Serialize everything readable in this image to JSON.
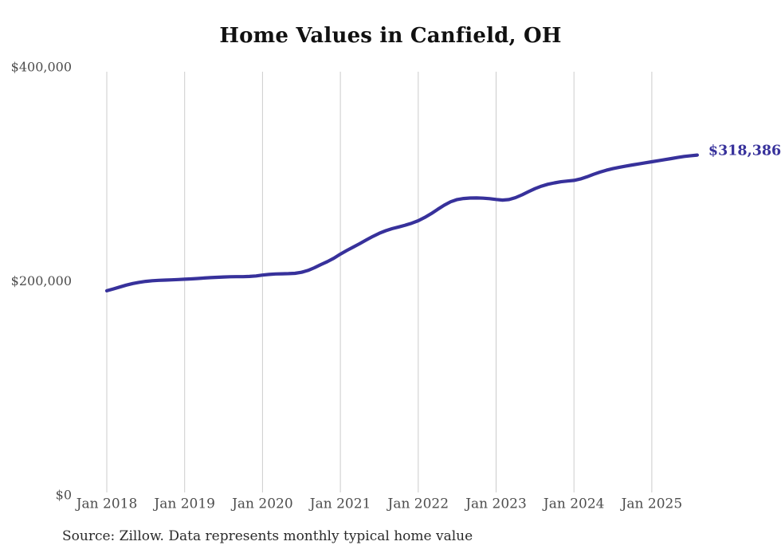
{
  "page": {
    "title": "Home Values in Canfield, OH",
    "source": "Source: Zillow. Data represents monthly typical home value"
  },
  "chart_data": {
    "type": "line",
    "title": "Home Values in Canfield, OH",
    "source_note": "Source: Zillow. Data represents monthly typical home value",
    "series_name": "Monthly typical home value",
    "x_interval": "monthly",
    "x_start": "Jan 2018",
    "x_end": "Aug 2025",
    "x_tick_labels": [
      "Jan 2018",
      "Jan 2019",
      "Jan 2020",
      "Jan 2021",
      "Jan 2022",
      "Jan 2023",
      "Jan 2024",
      "Jan 2025"
    ],
    "y_ticks": [
      {
        "label": "$400,000",
        "value": 400000
      },
      {
        "label": "$200,000",
        "value": 200000
      },
      {
        "label": "$0",
        "value": 0
      }
    ],
    "ylim": [
      0,
      400000
    ],
    "grid": "vertical-only",
    "legend": "none",
    "end_label": "$318,386",
    "final_value": 318386,
    "colors": {
      "line": "#37319b",
      "grid": "#cccccc",
      "axis_text": "#4d4d4d",
      "title": "#111111",
      "end_label": "#37319b"
    },
    "values": [
      191500,
      193200,
      195000,
      196800,
      198300,
      199400,
      200300,
      200900,
      201300,
      201500,
      201700,
      202000,
      202300,
      202600,
      203000,
      203400,
      203800,
      204100,
      204400,
      204600,
      204700,
      204700,
      204900,
      205400,
      206200,
      206800,
      207200,
      207400,
      207500,
      207800,
      208800,
      210500,
      213000,
      216000,
      218800,
      222000,
      225800,
      229200,
      232400,
      235600,
      239000,
      242300,
      245300,
      247700,
      249600,
      251200,
      252800,
      254700,
      257000,
      260000,
      263600,
      267600,
      271500,
      274700,
      276800,
      277800,
      278200,
      278300,
      278100,
      277600,
      276900,
      276300,
      276800,
      278600,
      281200,
      284200,
      287000,
      289300,
      291100,
      292400,
      293400,
      294100,
      294700,
      296000,
      298000,
      300300,
      302400,
      304200,
      305700,
      307000,
      308100,
      309100,
      310100,
      311100,
      312100,
      313100,
      314100,
      315100,
      316100,
      317100,
      317800,
      318386
    ]
  }
}
